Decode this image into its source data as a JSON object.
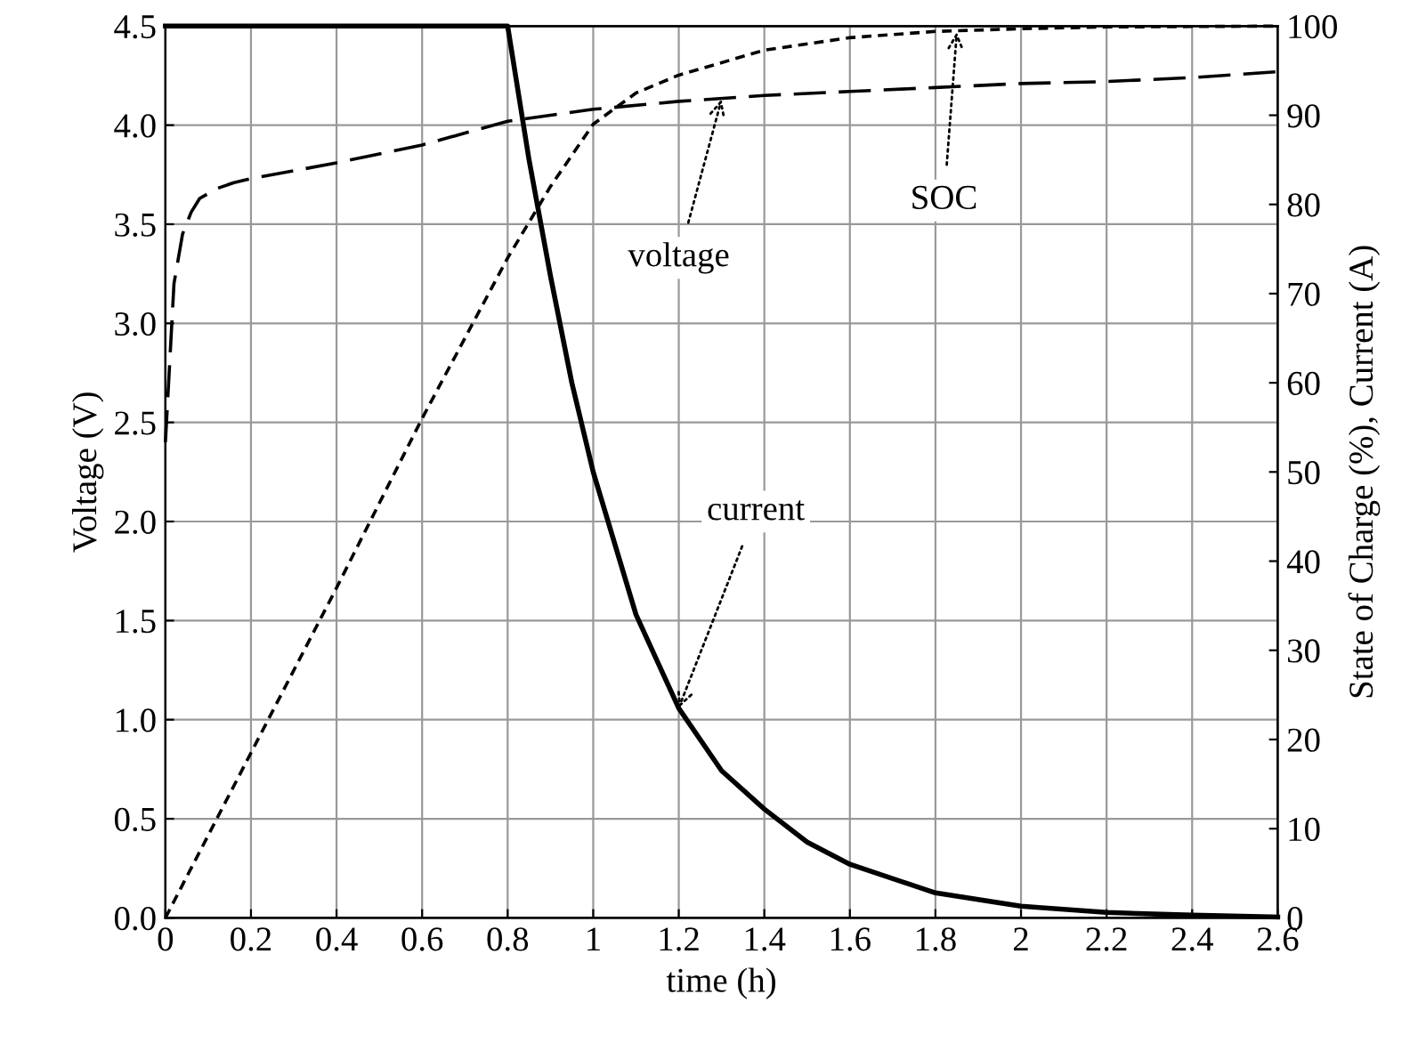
{
  "chart_data": {
    "type": "line",
    "xlabel": "time (h)",
    "ylabel": "Voltage (V)",
    "y2label": "State of Charge (%), Current (A)",
    "xlim": [
      0,
      2.6
    ],
    "xticks": [
      0,
      0.2,
      0.4,
      0.6,
      0.8,
      1,
      1.2,
      1.4,
      1.6,
      1.8,
      2,
      2.2,
      2.4,
      2.6
    ],
    "ylim": [
      0,
      4.5
    ],
    "yticks": [
      {
        "value": 0,
        "label": "0.0"
      },
      0.5,
      {
        "value": 1,
        "label": "1.0"
      },
      1.5,
      {
        "value": 2,
        "label": "2.0"
      },
      2.5,
      {
        "value": 3,
        "label": "3.0"
      },
      3.5,
      {
        "value": 4,
        "label": "4.0"
      },
      4.5
    ],
    "y2lim": [
      0,
      100
    ],
    "y2ticks": [
      0,
      10,
      20,
      30,
      40,
      50,
      60,
      70,
      80,
      90,
      100
    ],
    "grid": true,
    "legend": false,
    "marker": "none",
    "series": [
      {
        "color": "#000000",
        "line_style": "dashed",
        "x": [
          0,
          0.02,
          0.04,
          0.06,
          0.08,
          0.12,
          0.16,
          0.2,
          0.4,
          0.6,
          0.8,
          1.0,
          1.2,
          1.4,
          1.6,
          1.8,
          2.0,
          2.2,
          2.4,
          2.6
        ],
        "values": [
          2.4,
          3.2,
          3.45,
          3.56,
          3.63,
          3.68,
          3.71,
          3.73,
          3.81,
          3.9,
          4.02,
          4.08,
          4.12,
          4.15,
          4.17,
          4.19,
          4.21,
          4.22,
          4.24,
          4.27
        ]
      },
      {
        "color": "#000000",
        "line_style": "dotted",
        "axis": "y2",
        "x": [
          0,
          0.2,
          0.4,
          0.6,
          0.8,
          0.9,
          1.0,
          1.1,
          1.2,
          1.4,
          1.6,
          1.8,
          2.0,
          2.2,
          2.6
        ],
        "values": [
          0,
          18.5,
          37,
          56,
          74,
          82,
          89,
          92.5,
          94.5,
          97.3,
          98.7,
          99.4,
          99.7,
          99.9,
          100
        ]
      },
      {
        "color": "#000000",
        "line_style": "solid",
        "axis": "y2",
        "x": [
          0,
          0.8,
          0.85,
          0.9,
          0.95,
          1.0,
          1.1,
          1.2,
          1.3,
          1.4,
          1.5,
          1.6,
          1.8,
          2.0,
          2.2,
          2.4,
          2.6
        ],
        "values": [
          100,
          100,
          85,
          72,
          60,
          50,
          34,
          23.5,
          16.5,
          12.2,
          8.5,
          6,
          2.8,
          1.3,
          0.6,
          0.3,
          0.1
        ]
      }
    ],
    "annotations": [
      {
        "text": "voltage",
        "x": 1.3,
        "y": 4.13
      },
      {
        "text": "SOC",
        "x": 1.85,
        "y": 4.47
      },
      {
        "text": "current",
        "x": 1.2,
        "y": 1.06
      }
    ]
  }
}
